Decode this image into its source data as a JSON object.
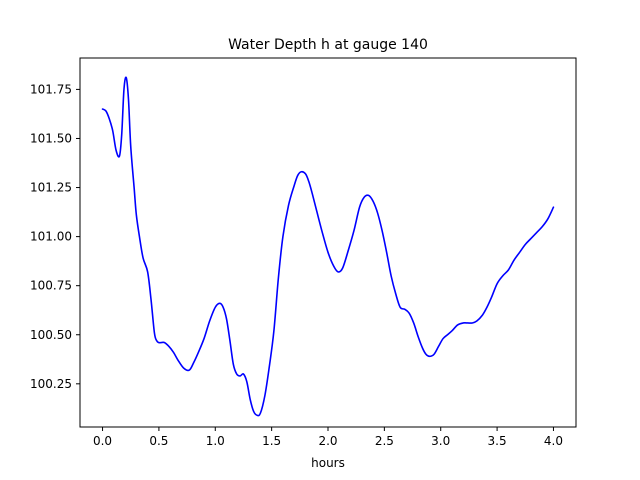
{
  "chart_data": {
    "type": "line",
    "title": "Water Depth h at gauge 140",
    "xlabel": "hours",
    "ylabel": "",
    "xlim": [
      -0.2,
      4.2
    ],
    "ylim": [
      100.03,
      101.91
    ],
    "xticks": [
      0.0,
      0.5,
      1.0,
      1.5,
      2.0,
      2.5,
      3.0,
      3.5,
      4.0
    ],
    "xtick_labels": [
      "0.0",
      "0.5",
      "1.0",
      "1.5",
      "2.0",
      "2.5",
      "3.0",
      "3.5",
      "4.0"
    ],
    "yticks": [
      100.25,
      100.5,
      100.75,
      101.0,
      101.25,
      101.5,
      101.75
    ],
    "ytick_labels": [
      "100.25",
      "100.50",
      "100.75",
      "101.00",
      "101.25",
      "101.50",
      "101.75"
    ],
    "grid": false,
    "series": [
      {
        "color": "#0000ff",
        "x": [
          0.0,
          0.03,
          0.06,
          0.09,
          0.12,
          0.15,
          0.17,
          0.19,
          0.21,
          0.23,
          0.25,
          0.28,
          0.3,
          0.33,
          0.36,
          0.4,
          0.43,
          0.46,
          0.48,
          0.5,
          0.52,
          0.55,
          0.59,
          0.63,
          0.67,
          0.72,
          0.77,
          0.81,
          0.85,
          0.9,
          0.95,
          1.0,
          1.04,
          1.07,
          1.1,
          1.13,
          1.16,
          1.19,
          1.22,
          1.25,
          1.28,
          1.31,
          1.34,
          1.37,
          1.4,
          1.44,
          1.48,
          1.52,
          1.56,
          1.6,
          1.65,
          1.7,
          1.73,
          1.76,
          1.8,
          1.83,
          1.86,
          1.9,
          1.95,
          2.0,
          2.05,
          2.09,
          2.13,
          2.18,
          2.23,
          2.28,
          2.32,
          2.36,
          2.4,
          2.44,
          2.48,
          2.52,
          2.56,
          2.6,
          2.64,
          2.68,
          2.72,
          2.76,
          2.8,
          2.84,
          2.87,
          2.9,
          2.94,
          2.98,
          3.02,
          3.06,
          3.1,
          3.15,
          3.2,
          3.24,
          3.28,
          3.32,
          3.37,
          3.41,
          3.45,
          3.5,
          3.55,
          3.6,
          3.65,
          3.7,
          3.75,
          3.8,
          3.85,
          3.9,
          3.95,
          4.0
        ],
        "y": [
          101.65,
          101.64,
          101.6,
          101.54,
          101.44,
          101.41,
          101.52,
          101.75,
          101.81,
          101.7,
          101.46,
          101.25,
          101.11,
          100.99,
          100.89,
          100.82,
          100.68,
          100.51,
          100.47,
          100.46,
          100.46,
          100.46,
          100.44,
          100.41,
          100.37,
          100.33,
          100.32,
          100.36,
          100.41,
          100.48,
          100.57,
          100.64,
          100.66,
          100.64,
          100.58,
          100.47,
          100.35,
          100.3,
          100.29,
          100.3,
          100.26,
          100.17,
          100.11,
          100.09,
          100.1,
          100.19,
          100.34,
          100.52,
          100.79,
          101.0,
          101.16,
          101.26,
          101.31,
          101.33,
          101.32,
          101.28,
          101.22,
          101.13,
          101.02,
          100.92,
          100.85,
          100.82,
          100.84,
          100.93,
          101.03,
          101.15,
          101.2,
          101.21,
          101.18,
          101.12,
          101.03,
          100.92,
          100.8,
          100.71,
          100.64,
          100.63,
          100.61,
          100.56,
          100.49,
          100.43,
          100.4,
          100.39,
          100.4,
          100.44,
          100.48,
          100.5,
          100.52,
          100.55,
          100.56,
          100.56,
          100.56,
          100.57,
          100.6,
          100.64,
          100.69,
          100.76,
          100.8,
          100.83,
          100.88,
          100.92,
          100.96,
          100.99,
          101.02,
          101.05,
          101.09,
          101.15
        ]
      }
    ]
  }
}
